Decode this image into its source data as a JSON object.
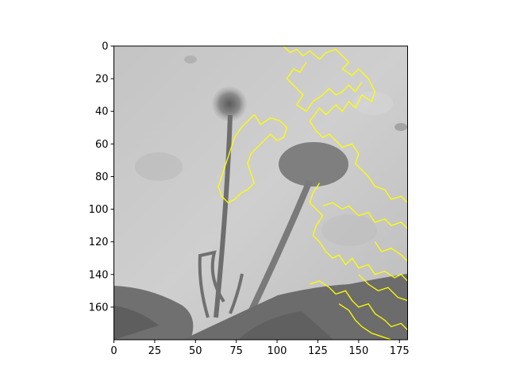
{
  "figure": {
    "background": "#ffffff"
  },
  "chart_data": {
    "type": "image",
    "title": "",
    "xlabel": "",
    "ylabel": "",
    "xlim": [
      0,
      180
    ],
    "ylim": [
      180,
      0
    ],
    "xticks": [
      0,
      25,
      50,
      75,
      100,
      125,
      150,
      175
    ],
    "yticks": [
      0,
      20,
      40,
      60,
      80,
      100,
      120,
      140,
      160
    ],
    "image": {
      "content": "grayscale photo of dandelion seed head with stalk and its shadow on a wall, leaves at bottom",
      "colormap": "gray"
    },
    "overlay": {
      "type": "contour",
      "color": "#ffff00",
      "polylines": [
        [
          [
            104,
            0
          ],
          [
            108,
            4
          ],
          [
            112,
            2
          ],
          [
            116,
            6
          ],
          [
            120,
            3
          ],
          [
            126,
            8
          ],
          [
            130,
            4
          ],
          [
            136,
            2
          ],
          [
            140,
            6
          ],
          [
            144,
            10
          ],
          [
            140,
            14
          ],
          [
            146,
            18
          ],
          [
            150,
            14
          ],
          [
            156,
            20
          ],
          [
            160,
            28
          ],
          [
            158,
            34
          ],
          [
            152,
            30
          ],
          [
            148,
            38
          ],
          [
            144,
            34
          ],
          [
            140,
            40
          ],
          [
            136,
            36
          ],
          [
            130,
            42
          ],
          [
            126,
            38
          ],
          [
            120,
            46
          ],
          [
            124,
            52
          ],
          [
            128,
            56
          ],
          [
            132,
            54
          ],
          [
            136,
            58
          ],
          [
            140,
            62
          ],
          [
            146,
            60
          ],
          [
            150,
            66
          ],
          [
            148,
            72
          ],
          [
            152,
            76
          ],
          [
            156,
            80
          ],
          [
            160,
            86
          ],
          [
            166,
            88
          ],
          [
            170,
            94
          ],
          [
            176,
            92
          ],
          [
            180,
            96
          ]
        ],
        [
          [
            118,
            10
          ],
          [
            114,
            16
          ],
          [
            110,
            14
          ],
          [
            106,
            20
          ],
          [
            112,
            26
          ],
          [
            116,
            30
          ],
          [
            112,
            36
          ],
          [
            118,
            40
          ],
          [
            122,
            34
          ],
          [
            128,
            30
          ],
          [
            132,
            26
          ],
          [
            136,
            30
          ],
          [
            140,
            28
          ],
          [
            144,
            24
          ],
          [
            148,
            28
          ],
          [
            152,
            22
          ]
        ],
        [
          [
            86,
            42
          ],
          [
            82,
            46
          ],
          [
            78,
            50
          ],
          [
            74,
            56
          ],
          [
            72,
            62
          ],
          [
            70,
            68
          ],
          [
            68,
            74
          ],
          [
            66,
            80
          ],
          [
            64,
            86
          ],
          [
            66,
            92
          ],
          [
            70,
            96
          ],
          [
            74,
            94
          ],
          [
            78,
            90
          ],
          [
            82,
            88
          ],
          [
            86,
            84
          ],
          [
            84,
            78
          ],
          [
            82,
            72
          ],
          [
            84,
            66
          ],
          [
            88,
            62
          ],
          [
            92,
            58
          ],
          [
            96,
            54
          ],
          [
            100,
            58
          ],
          [
            104,
            56
          ],
          [
            106,
            50
          ],
          [
            102,
            46
          ],
          [
            96,
            44
          ],
          [
            90,
            48
          ],
          [
            86,
            42
          ]
        ],
        [
          [
            126,
            84
          ],
          [
            122,
            90
          ],
          [
            120,
            96
          ],
          [
            124,
            100
          ],
          [
            128,
            104
          ],
          [
            124,
            110
          ],
          [
            122,
            116
          ],
          [
            126,
            120
          ],
          [
            130,
            126
          ],
          [
            134,
            130
          ],
          [
            138,
            128
          ],
          [
            142,
            134
          ],
          [
            146,
            130
          ],
          [
            150,
            136
          ],
          [
            156,
            134
          ],
          [
            160,
            140
          ],
          [
            166,
            138
          ],
          [
            172,
            142
          ],
          [
            176,
            140
          ],
          [
            180,
            144
          ]
        ],
        [
          [
            128,
            98
          ],
          [
            134,
            96
          ],
          [
            140,
            100
          ],
          [
            144,
            98
          ],
          [
            150,
            104
          ],
          [
            156,
            102
          ],
          [
            160,
            108
          ],
          [
            166,
            106
          ],
          [
            170,
            110
          ],
          [
            176,
            108
          ],
          [
            180,
            112
          ]
        ],
        [
          [
            120,
            146
          ],
          [
            126,
            144
          ],
          [
            132,
            148
          ],
          [
            136,
            152
          ],
          [
            142,
            150
          ],
          [
            146,
            156
          ],
          [
            150,
            160
          ],
          [
            156,
            158
          ],
          [
            160,
            164
          ],
          [
            166,
            168
          ],
          [
            170,
            172
          ],
          [
            176,
            170
          ],
          [
            180,
            174
          ]
        ],
        [
          [
            138,
            158
          ],
          [
            144,
            162
          ],
          [
            148,
            168
          ],
          [
            152,
            172
          ],
          [
            158,
            176
          ],
          [
            164,
            178
          ],
          [
            170,
            180
          ]
        ],
        [
          [
            150,
            140
          ],
          [
            156,
            146
          ],
          [
            162,
            150
          ],
          [
            168,
            148
          ],
          [
            174,
            154
          ],
          [
            180,
            156
          ]
        ],
        [
          [
            160,
            120
          ],
          [
            164,
            126
          ],
          [
            170,
            124
          ],
          [
            176,
            128
          ],
          [
            180,
            132
          ]
        ]
      ]
    }
  }
}
